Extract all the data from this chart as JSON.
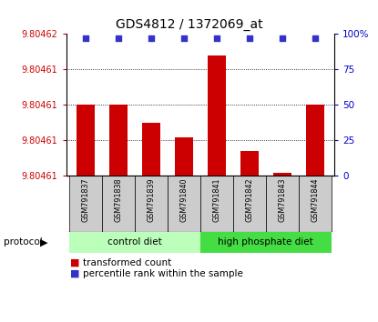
{
  "title": "GDS4812 / 1372069_at",
  "samples": [
    "GSM791837",
    "GSM791838",
    "GSM791839",
    "GSM791840",
    "GSM791841",
    "GSM791842",
    "GSM791843",
    "GSM791844"
  ],
  "bar_values": [
    50,
    50,
    37,
    27,
    85,
    17,
    2,
    50
  ],
  "percentile_values": [
    97,
    97,
    97,
    97,
    97,
    97,
    97,
    97
  ],
  "y_min": 0,
  "y_max": 100,
  "y_ticks_left_pos": [
    0,
    25,
    50,
    75,
    100
  ],
  "y_tick_labels_left": [
    "9.80461",
    "9.80461",
    "9.80461",
    "9.80461",
    "9.80462"
  ],
  "y_ticks_right": [
    0,
    25,
    50,
    75,
    100
  ],
  "y_tick_labels_right": [
    "0",
    "25",
    "50",
    "75",
    "100%"
  ],
  "group1_label": "control diet",
  "group1_color": "#bbffbb",
  "group2_label": "high phosphate diet",
  "group2_color": "#44dd44",
  "bar_color": "#cc0000",
  "dot_color": "#3333cc",
  "label_color_left": "#cc0000",
  "label_color_right": "#0000cc",
  "grid_dotted_color": "#555555"
}
